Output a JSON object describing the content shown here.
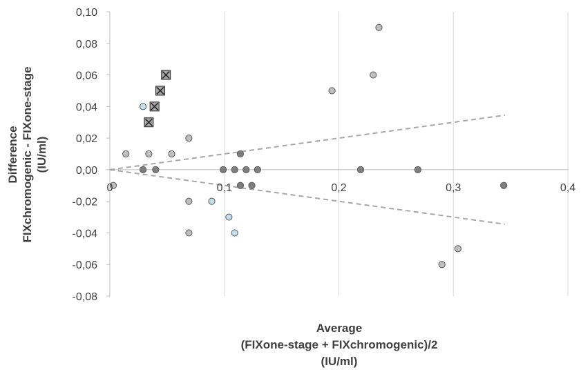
{
  "chart_data": {
    "type": "scatter",
    "xlabel": [
      "Average",
      "(FIXone-stage + FIXchromogenic)/2",
      "(IU/ml)"
    ],
    "ylabel": [
      "Difference",
      "FIXchromogenic - FIXone-stage",
      "(IU/ml)"
    ],
    "xlim": [
      0,
      0.4
    ],
    "ylim": [
      -0.08,
      0.1
    ],
    "x_ticks": [
      "0",
      "0,1",
      "0,2",
      "0,3",
      "0,4"
    ],
    "y_ticks": [
      "0,10",
      "0,08",
      "0,06",
      "0,04",
      "0,02",
      "0,00",
      "-0,02",
      "-0,04",
      "-0,06",
      "-0,08"
    ],
    "grid": "vertical",
    "legend": "none",
    "colors": {
      "light_gray_marker": "#bfbfbf",
      "dark_gray_marker": "#7f7f7f",
      "light_blue_marker": "#bfe0ec",
      "cross_marker": "#a6a6a6",
      "reference_lines": "#a6a6a6",
      "gridlines": "#d9d9d9"
    },
    "series": [
      {
        "marker": "circle",
        "color": "#bfbfbf",
        "points": [
          [
            0.003,
            -0.01
          ],
          [
            0.014,
            0.01
          ],
          [
            0.034,
            0.01
          ],
          [
            0.054,
            0.01
          ],
          [
            0.069,
            0.02
          ],
          [
            0.069,
            -0.02
          ],
          [
            0.069,
            -0.04
          ],
          [
            0.194,
            0.05
          ],
          [
            0.23,
            0.06
          ],
          [
            0.235,
            0.09
          ],
          [
            0.29,
            -0.06
          ],
          [
            0.304,
            -0.05
          ]
        ]
      },
      {
        "marker": "circle",
        "color": "#bfe0ec",
        "points": [
          [
            0.029,
            0.04
          ],
          [
            0.089,
            -0.02
          ],
          [
            0.104,
            -0.03
          ],
          [
            0.109,
            -0.04
          ]
        ]
      },
      {
        "marker": "circle",
        "color": "#7f7f7f",
        "points": [
          [
            0.029,
            0.0
          ],
          [
            0.04,
            0.0
          ],
          [
            0.099,
            0.0
          ],
          [
            0.109,
            0.0
          ],
          [
            0.114,
            0.01
          ],
          [
            0.114,
            -0.01
          ],
          [
            0.119,
            0.0
          ],
          [
            0.124,
            -0.01
          ],
          [
            0.129,
            0.0
          ],
          [
            0.219,
            0.0
          ],
          [
            0.269,
            0.0
          ],
          [
            0.344,
            -0.01
          ]
        ]
      },
      {
        "marker": "x-square",
        "color": "#a6a6a6",
        "points": [
          [
            0.034,
            0.03
          ],
          [
            0.039,
            0.04
          ],
          [
            0.044,
            0.05
          ],
          [
            0.049,
            0.06
          ]
        ]
      }
    ],
    "reference_lines": [
      {
        "style": "dashed",
        "from": [
          0,
          0
        ],
        "to": [
          0.345,
          0.0345
        ]
      },
      {
        "style": "dashed",
        "from": [
          0,
          0
        ],
        "to": [
          0.345,
          -0.0345
        ]
      }
    ]
  }
}
